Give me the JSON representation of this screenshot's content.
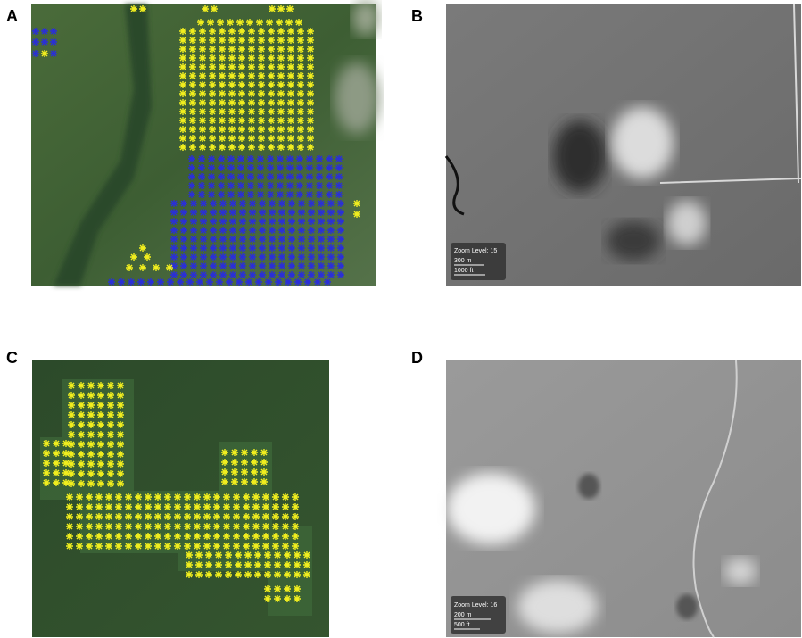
{
  "panels": [
    {
      "label": "A"
    },
    {
      "label": "B",
      "zoom_level": "Zoom Level: 15",
      "scale": [
        "300 m",
        "1000 ft"
      ]
    },
    {
      "label": "C"
    },
    {
      "label": "D",
      "zoom_level": "Zoom Level: 16",
      "scale": [
        "200 m",
        "500 ft"
      ]
    }
  ]
}
